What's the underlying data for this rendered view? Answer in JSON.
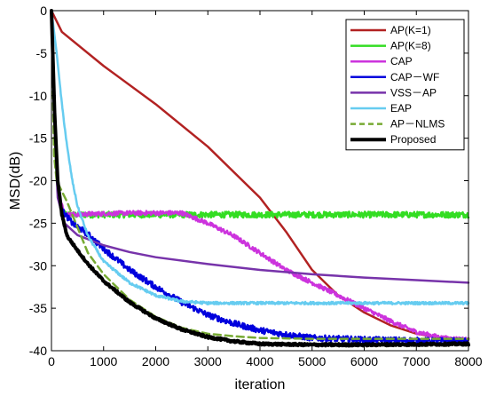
{
  "chart_data": {
    "type": "line",
    "xlabel": "iteration",
    "ylabel": "MSD(dB)",
    "xlim": [
      0,
      8000
    ],
    "ylim": [
      -40,
      0
    ],
    "xticks": [
      0,
      1000,
      2000,
      3000,
      4000,
      5000,
      6000,
      7000,
      8000
    ],
    "yticks": [
      0,
      -5,
      -10,
      -15,
      -20,
      -25,
      -30,
      -35,
      -40
    ],
    "grid": false,
    "legend_position": "top-right",
    "series": [
      {
        "name": "AP(K=1)",
        "color": "#b22222",
        "style": "solid",
        "noise": 0.0,
        "points": [
          [
            0,
            0
          ],
          [
            200,
            -2.5
          ],
          [
            1000,
            -6.5
          ],
          [
            2000,
            -11
          ],
          [
            3000,
            -16
          ],
          [
            4000,
            -22
          ],
          [
            4500,
            -26
          ],
          [
            5000,
            -30.5
          ],
          [
            5500,
            -33.5
          ],
          [
            6000,
            -35.5
          ],
          [
            6500,
            -37
          ],
          [
            7000,
            -38
          ],
          [
            7500,
            -38.5
          ],
          [
            8000,
            -38.7
          ]
        ]
      },
      {
        "name": "AP(K=8)",
        "color": "#33dd22",
        "style": "solid",
        "noise": 0.35,
        "points": [
          [
            0,
            0
          ],
          [
            50,
            -12
          ],
          [
            100,
            -20
          ],
          [
            180,
            -23.5
          ],
          [
            300,
            -24
          ],
          [
            8000,
            -24
          ]
        ]
      },
      {
        "name": "CAP",
        "color": "#cc33dd",
        "style": "solid",
        "noise": 0.25,
        "points": [
          [
            0,
            0
          ],
          [
            60,
            -13
          ],
          [
            120,
            -21
          ],
          [
            250,
            -24
          ],
          [
            1500,
            -23.8
          ],
          [
            2500,
            -23.8
          ],
          [
            3000,
            -25
          ],
          [
            3500,
            -26.5
          ],
          [
            4000,
            -28.5
          ],
          [
            4500,
            -30.5
          ],
          [
            5000,
            -32
          ],
          [
            5500,
            -33.5
          ],
          [
            6000,
            -35
          ],
          [
            6500,
            -36.5
          ],
          [
            7000,
            -37.8
          ],
          [
            7500,
            -38.5
          ],
          [
            8000,
            -38.7
          ]
        ]
      },
      {
        "name": "CAP－WF",
        "color": "#0000dd",
        "style": "solid",
        "noise": 0.35,
        "points": [
          [
            0,
            0
          ],
          [
            50,
            -12
          ],
          [
            100,
            -19
          ],
          [
            200,
            -23.5
          ],
          [
            400,
            -25
          ],
          [
            700,
            -26.3
          ],
          [
            1000,
            -28
          ],
          [
            1500,
            -30.5
          ],
          [
            2000,
            -32.5
          ],
          [
            2500,
            -34.3
          ],
          [
            3000,
            -35.8
          ],
          [
            3500,
            -36.8
          ],
          [
            4000,
            -37.6
          ],
          [
            4500,
            -38.1
          ],
          [
            5000,
            -38.5
          ],
          [
            6000,
            -38.7
          ],
          [
            7000,
            -38.8
          ],
          [
            8000,
            -38.9
          ]
        ]
      },
      {
        "name": "VSS－AP",
        "color": "#7733aa",
        "style": "solid",
        "noise": 0.0,
        "points": [
          [
            0,
            0
          ],
          [
            60,
            -14
          ],
          [
            120,
            -22
          ],
          [
            250,
            -25
          ],
          [
            500,
            -26.4
          ],
          [
            1000,
            -27.6
          ],
          [
            1500,
            -28.4
          ],
          [
            2000,
            -29
          ],
          [
            3000,
            -29.8
          ],
          [
            4000,
            -30.5
          ],
          [
            5000,
            -31
          ],
          [
            6000,
            -31.4
          ],
          [
            7000,
            -31.7
          ],
          [
            8000,
            -32
          ]
        ]
      },
      {
        "name": "EAP",
        "color": "#66ccf0",
        "style": "solid",
        "noise": 0.15,
        "points": [
          [
            0,
            0
          ],
          [
            100,
            -5
          ],
          [
            200,
            -11
          ],
          [
            300,
            -16
          ],
          [
            400,
            -20
          ],
          [
            500,
            -23
          ],
          [
            700,
            -26.5
          ],
          [
            1000,
            -29.5
          ],
          [
            1500,
            -32
          ],
          [
            2000,
            -33.5
          ],
          [
            2500,
            -34.2
          ],
          [
            3000,
            -34.4
          ],
          [
            8000,
            -34.4
          ]
        ]
      },
      {
        "name": "AP－NLMS",
        "color": "#77aa33",
        "style": "dashed",
        "noise": 0.0,
        "points": [
          [
            0,
            0
          ],
          [
            50,
            -17
          ],
          [
            100,
            -20
          ],
          [
            300,
            -22.5
          ],
          [
            500,
            -25.5
          ],
          [
            700,
            -28.5
          ],
          [
            1000,
            -31
          ],
          [
            1500,
            -34
          ],
          [
            2000,
            -36
          ],
          [
            2500,
            -37.3
          ],
          [
            3000,
            -38
          ],
          [
            3500,
            -38.3
          ],
          [
            4000,
            -38.5
          ],
          [
            5000,
            -38.6
          ],
          [
            8000,
            -38.6
          ]
        ]
      },
      {
        "name": "Proposed",
        "color": "#000000",
        "style": "solid",
        "width": 4,
        "noise": 0.12,
        "points": [
          [
            0,
            0
          ],
          [
            60,
            -12
          ],
          [
            120,
            -20
          ],
          [
            200,
            -24
          ],
          [
            300,
            -26.5
          ],
          [
            500,
            -28.2
          ],
          [
            700,
            -29.8
          ],
          [
            1000,
            -31.8
          ],
          [
            1500,
            -34.3
          ],
          [
            2000,
            -36.2
          ],
          [
            2500,
            -37.5
          ],
          [
            3000,
            -38.4
          ],
          [
            3500,
            -38.9
          ],
          [
            4000,
            -39.2
          ],
          [
            5000,
            -39.3
          ],
          [
            6000,
            -39.3
          ],
          [
            8000,
            -39.2
          ]
        ]
      }
    ]
  }
}
